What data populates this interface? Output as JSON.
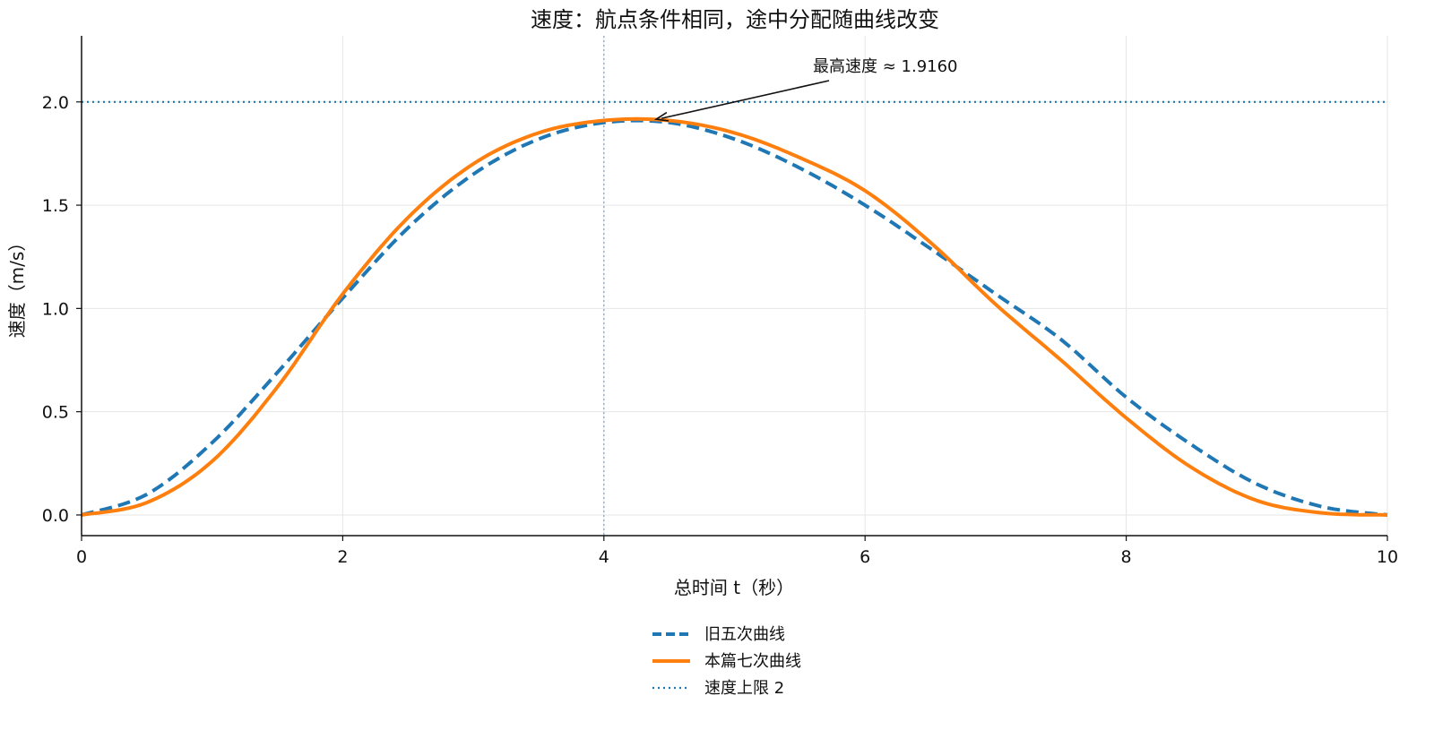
{
  "chart_data": {
    "type": "line",
    "title": "速度：航点条件相同，途中分配随曲线改变",
    "xlabel": "总时间 t（秒）",
    "ylabel": "速度（m/s）",
    "xlim": [
      0,
      10
    ],
    "ylim": [
      -0.1,
      2.32
    ],
    "xticks": [
      0,
      2,
      4,
      6,
      8,
      10
    ],
    "xtick_labels": [
      "0",
      "2",
      "4",
      "6",
      "8",
      "10"
    ],
    "yticks": [
      0.0,
      0.5,
      1.0,
      1.5,
      2.0
    ],
    "ytick_labels": [
      "0.0",
      "0.5",
      "1.0",
      "1.5",
      "2.0"
    ],
    "grid": true,
    "legend_position": "bottom-center",
    "series": [
      {
        "name": "旧五次曲线",
        "style": "dashed",
        "color": "#1f77b4",
        "x": [
          0,
          0.5,
          1,
          1.5,
          2,
          2.5,
          3,
          3.5,
          4,
          4.5,
          5,
          5.5,
          6,
          6.5,
          7,
          7.5,
          8,
          8.5,
          9,
          9.5,
          10
        ],
        "y": [
          0,
          0.1,
          0.35,
          0.69,
          1.05,
          1.39,
          1.65,
          1.82,
          1.9,
          1.9,
          1.82,
          1.68,
          1.5,
          1.29,
          1.07,
          0.85,
          0.57,
          0.34,
          0.15,
          0.04,
          0
        ]
      },
      {
        "name": "本篇七次曲线",
        "style": "solid",
        "color": "#ff7f0e",
        "x": [
          0,
          0.5,
          1,
          1.5,
          2,
          2.5,
          3,
          3.5,
          4,
          4.5,
          5,
          5.5,
          6,
          6.5,
          7,
          7.5,
          8,
          8.5,
          9,
          9.5,
          10
        ],
        "y": [
          0,
          0.06,
          0.26,
          0.62,
          1.07,
          1.44,
          1.7,
          1.85,
          1.91,
          1.91,
          1.85,
          1.73,
          1.57,
          1.32,
          1.02,
          0.75,
          0.47,
          0.23,
          0.07,
          0.01,
          0
        ]
      },
      {
        "name": "速度上限 2",
        "style": "dotted",
        "color": "#1f77b4",
        "x": [
          0,
          10
        ],
        "y": [
          2,
          2
        ]
      }
    ],
    "vertical_reference": {
      "x": 4,
      "color": "#7aa6da"
    },
    "annotation": {
      "text": "最高速度 ≈ 1.9160",
      "x": 4.4,
      "y": 1.916
    }
  }
}
